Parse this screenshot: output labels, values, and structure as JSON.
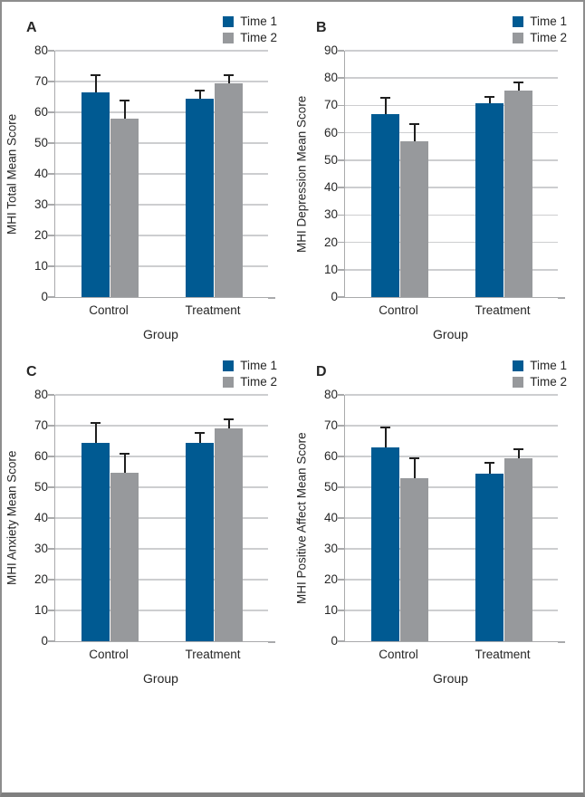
{
  "figure": {
    "legend_labels": [
      "Time 1",
      "Time 2"
    ],
    "colors": {
      "time1": "#005a92",
      "time2": "#97999c",
      "grid": "#cdced0",
      "axis": "#a9aaac",
      "error": "#1f1f1f",
      "text": "#262626",
      "border": "#8d8d8d",
      "border_bottom": "#7f7f7f"
    }
  },
  "chart_data": [
    {
      "type": "bar",
      "panel_label": "A",
      "ylabel": "MHI Total Mean Score",
      "xlabel": "Group",
      "categories": [
        "Control",
        "Treatment"
      ],
      "ylim": [
        0,
        80
      ],
      "ytick_step": 10,
      "grid": true,
      "legend_position": "top-right",
      "series": [
        {
          "name": "Time 1",
          "values": [
            66.6,
            64.3
          ],
          "errors_plus": [
            5.9,
            3.2
          ]
        },
        {
          "name": "Time 2",
          "values": [
            57.8,
            69.3
          ],
          "errors_plus": [
            6.3,
            3.1
          ]
        }
      ]
    },
    {
      "type": "bar",
      "panel_label": "B",
      "ylabel": "MHI Depression Mean Score",
      "xlabel": "Group",
      "categories": [
        "Control",
        "Treatment"
      ],
      "ylim": [
        0,
        90
      ],
      "ytick_step": 10,
      "grid": true,
      "legend_position": "top-right",
      "series": [
        {
          "name": "Time 1",
          "values": [
            66.7,
            70.7
          ],
          "errors_plus": [
            6.4,
            2.7
          ]
        },
        {
          "name": "Time 2",
          "values": [
            57.0,
            75.3
          ],
          "errors_plus": [
            6.7,
            3.6
          ]
        }
      ]
    },
    {
      "type": "bar",
      "panel_label": "C",
      "ylabel": "MHI Anxiety Mean Score",
      "xlabel": "Group",
      "categories": [
        "Control",
        "Treatment"
      ],
      "ylim": [
        0,
        80
      ],
      "ytick_step": 10,
      "grid": true,
      "legend_position": "top-right",
      "series": [
        {
          "name": "Time 1",
          "values": [
            64.3,
            64.3
          ],
          "errors_plus": [
            6.9,
            3.6
          ]
        },
        {
          "name": "Time 2",
          "values": [
            54.8,
            69.1
          ],
          "errors_plus": [
            6.5,
            3.2
          ]
        }
      ]
    },
    {
      "type": "bar",
      "panel_label": "D",
      "ylabel": "MHI Positive Affect Mean Score",
      "xlabel": "Group",
      "categories": [
        "Control",
        "Treatment"
      ],
      "ylim": [
        0,
        80
      ],
      "ytick_step": 10,
      "grid": true,
      "legend_position": "top-right",
      "series": [
        {
          "name": "Time 1",
          "values": [
            62.8,
            54.3
          ],
          "errors_plus": [
            7.0,
            3.8
          ]
        },
        {
          "name": "Time 2",
          "values": [
            52.8,
            59.4
          ],
          "errors_plus": [
            6.8,
            3.4
          ]
        }
      ]
    }
  ]
}
